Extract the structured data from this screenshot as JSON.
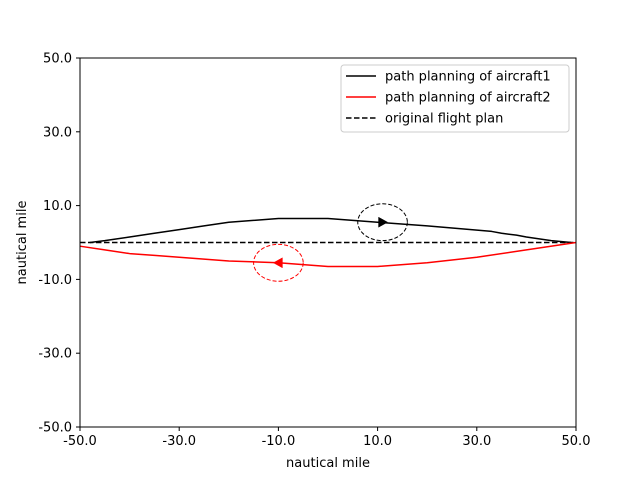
{
  "chart_data": {
    "type": "line",
    "title": "",
    "xlabel": "nautical mile",
    "ylabel": "nautical mile",
    "xlim": [
      -50,
      50
    ],
    "ylim": [
      -50,
      50
    ],
    "xticks": [
      -50,
      -30,
      -10,
      10,
      30,
      50
    ],
    "yticks": [
      -50,
      -30,
      -10,
      10,
      30,
      50
    ],
    "xtick_labels": [
      "-50.0",
      "-30.0",
      "-10.0",
      "10.0",
      "30.0",
      "50.0"
    ],
    "ytick_labels": [
      "-50.0",
      "-30.0",
      "-10.0",
      "10.0",
      "30.0",
      "50.0"
    ],
    "grid": false,
    "legend_position": "top-right",
    "series": [
      {
        "name": "path planning of aircraft1",
        "color": "#000000",
        "style": "solid",
        "x": [
          -48,
          -45,
          -40,
          -35,
          -30,
          -25,
          -20,
          -10,
          0,
          5,
          10,
          20,
          33,
          35,
          38,
          40,
          45,
          49
        ],
        "y": [
          0,
          0.5,
          1.5,
          2.5,
          3.5,
          4.5,
          5.5,
          6.5,
          6.5,
          6,
          5.5,
          4.5,
          3,
          2.5,
          2,
          1.5,
          0.5,
          0
        ]
      },
      {
        "name": "path planning of aircraft2",
        "color": "#ff0000",
        "style": "solid",
        "x": [
          50,
          40,
          30,
          20,
          10,
          0,
          -10,
          -20,
          -30,
          -35,
          -40,
          -45,
          -50
        ],
        "y": [
          0,
          -2,
          -4,
          -5.5,
          -6.5,
          -6.5,
          -5.5,
          -5,
          -4,
          -3.5,
          -3,
          -2,
          -1
        ]
      },
      {
        "name": "original flight plan",
        "color": "#000000",
        "style": "dashed",
        "x": [
          -50,
          50
        ],
        "y": [
          0,
          0
        ]
      }
    ],
    "annotations": [
      {
        "kind": "circle",
        "x": 11,
        "y": 5.5,
        "rx": 5,
        "ry": 5,
        "color": "#000000",
        "style": "dashed"
      },
      {
        "kind": "circle",
        "x": -10,
        "y": -5.5,
        "rx": 5,
        "ry": 5,
        "color": "#ff0000",
        "style": "dashed"
      },
      {
        "kind": "arrow",
        "x": 11,
        "y": 5.5,
        "direction": "right",
        "color": "#000000"
      },
      {
        "kind": "arrow",
        "x": -10,
        "y": -5.5,
        "direction": "left",
        "color": "#ff0000"
      }
    ]
  }
}
